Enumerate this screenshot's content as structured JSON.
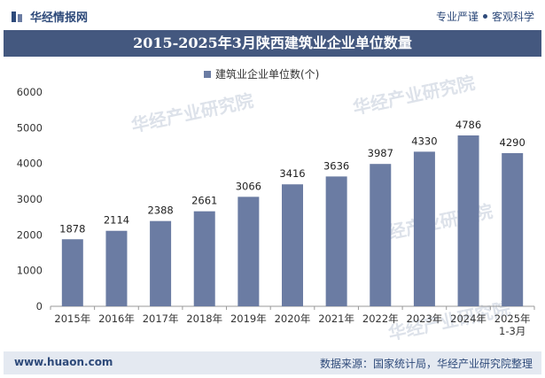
{
  "header": {
    "brand": "华经情报网",
    "tagline_left": "专业严谨",
    "tagline_right": "客观科学"
  },
  "title": "2015-2025年3月陕西建筑业企业单位数量",
  "footer": {
    "site": "www.huaon.com",
    "source": "数据来源：国家统计局，华经产业研究院整理"
  },
  "watermark": "华经产业研究院",
  "colors": {
    "bar": "#6b7ca3",
    "title_bg": "#44587f",
    "footer_bg": "#e4e9f1",
    "brand": "#2e4a7a"
  },
  "chart_data": {
    "type": "bar",
    "categories": [
      "2015年",
      "2016年",
      "2017年",
      "2018年",
      "2019年",
      "2020年",
      "2021年",
      "2022年",
      "2023年",
      "2024年",
      "2025年\n1-3月"
    ],
    "series": [
      {
        "name": "建筑业企业单位数(个)",
        "values": [
          1878,
          2114,
          2388,
          2661,
          3066,
          3416,
          3636,
          3987,
          4330,
          4786,
          4290
        ]
      }
    ],
    "ylim": [
      0,
      6000
    ],
    "yticks": [
      0,
      1000,
      2000,
      3000,
      4000,
      5000,
      6000
    ],
    "legend": "top",
    "grid": false
  }
}
